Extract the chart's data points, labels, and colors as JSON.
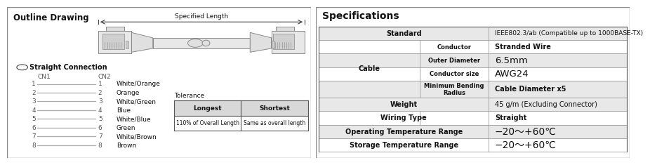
{
  "bg_color": "#ffffff",
  "left_panel_bg": "#ffffff",
  "right_panel_bg": "#ffffff",
  "border_color": "#888888",
  "outline_title": "Outline Drawing",
  "specified_length": "Specified Length",
  "straight_connection": "Straight Connection",
  "cn1_label": "CN1",
  "cn2_label": "CN2",
  "wire_pairs": [
    [
      "1",
      "1",
      "White/Orange"
    ],
    [
      "2",
      "2",
      "Orange"
    ],
    [
      "3",
      "3",
      "White/Green"
    ],
    [
      "4",
      "4",
      "Blue"
    ],
    [
      "5",
      "5",
      "White/Blue"
    ],
    [
      "6",
      "6",
      "Green"
    ],
    [
      "7",
      "7",
      "White/Brown"
    ],
    [
      "8",
      "8",
      "Brown"
    ]
  ],
  "tolerance_title": "Tolerance",
  "tol_headers": [
    "Longest",
    "Shortest"
  ],
  "tol_values": [
    "110% of Overall Length",
    "Same as overall length"
  ],
  "spec_title": "Specifications",
  "spec_rows": [
    {
      "label": "Standard",
      "sub": "",
      "value": "IEEE802.3/ab (Compatible up to 1000BASE-TX)",
      "bold_val": false,
      "large": false,
      "val_align": "left"
    },
    {
      "label": "Cable",
      "sub": "Conductor",
      "value": "Stranded Wire",
      "bold_val": true,
      "large": false,
      "val_align": "left"
    },
    {
      "label": "Cable",
      "sub": "Outer Diameter",
      "value": "6.5mm",
      "bold_val": false,
      "large": true,
      "val_align": "left"
    },
    {
      "label": "Cable",
      "sub": "Conductor size",
      "value": "AWG24",
      "bold_val": false,
      "large": true,
      "val_align": "left"
    },
    {
      "label": "Cable",
      "sub": "Minimum Bending\nRadius",
      "value": "Cable Diameter x5",
      "bold_val": true,
      "large": false,
      "val_align": "left"
    },
    {
      "label": "Weight",
      "sub": "",
      "value": "45 g/m (Excluding Connector)",
      "bold_val": false,
      "large": false,
      "val_align": "left"
    },
    {
      "label": "Wiring Type",
      "sub": "",
      "value": "Straight",
      "bold_val": true,
      "large": false,
      "val_align": "left"
    },
    {
      "label": "Operating Temperature Range",
      "sub": "",
      "value": "−20～+60℃",
      "bold_val": false,
      "large": true,
      "val_align": "left"
    },
    {
      "label": "Storage Temperature Range",
      "sub": "",
      "value": "−20～+60℃",
      "bold_val": false,
      "large": true,
      "val_align": "left"
    }
  ],
  "header_bg": "#e8e8e8",
  "cell_bg": "#ffffff",
  "line_color": "#999999",
  "text_color": "#111111",
  "gray_text": "#555555",
  "dark_border": "#555555"
}
